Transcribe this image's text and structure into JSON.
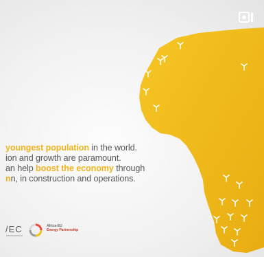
{
  "headline": {
    "line1": {
      "a": "",
      "b": "youngest population",
      "c": " in the world."
    },
    "line2": {
      "a": "ion and growth are paramount."
    },
    "line3": {
      "a": "an help ",
      "b": "boost the economy",
      "c": " through"
    },
    "line4": {
      "a": "n, in construction and operations."
    }
  },
  "logos": {
    "left_logo": "/EC",
    "partner_line1": "Africa-EU",
    "partner_line2": "Energy Partnership"
  },
  "icons": {
    "media": "media-indicator-icon",
    "turbine": "wind-turbine-icon",
    "partner_logo": "partner-logo-icon"
  },
  "colors": {
    "africa": "#f3bd1c",
    "highlight": "#f0b41c",
    "text": "#555555",
    "turbine": "#ffffff"
  }
}
